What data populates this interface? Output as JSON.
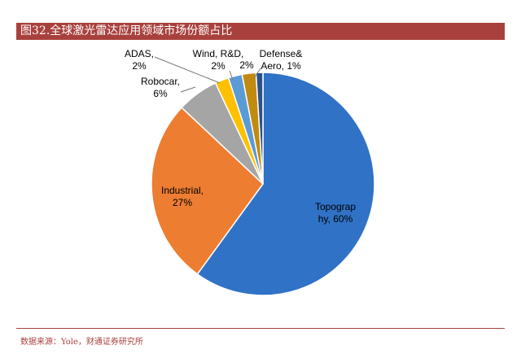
{
  "header": {
    "title": "图32.全球激光雷达应用领域市场份额占比"
  },
  "footer": {
    "source": "数据来源：Yole，财通证券研究所"
  },
  "chart_data": {
    "type": "pie",
    "start": "top, clockwise",
    "slices": [
      {
        "label_lines": [
          "Topograp",
          "hy, 60%"
        ],
        "value": 60,
        "color": "#3072c6"
      },
      {
        "label_lines": [
          "Industrial,",
          "27%"
        ],
        "value": 27,
        "color": "#ed7d31"
      },
      {
        "label_lines": [
          "Robocar,",
          "6%"
        ],
        "value": 6,
        "color": "#a5a5a5"
      },
      {
        "label_lines": [
          "ADAS,",
          "2%"
        ],
        "value": 2,
        "color": "#ffc000"
      },
      {
        "label_lines": [
          "Wind, R&D,",
          "2%"
        ],
        "value": 2,
        "color": "#5b9bd5"
      },
      {
        "label_lines": [
          "2%"
        ],
        "value": 2,
        "color": "#c18a10"
      },
      {
        "label_lines": [
          "Defense&",
          "Aero, 1%"
        ],
        "value": 1,
        "color": "#2b5288"
      }
    ]
  }
}
